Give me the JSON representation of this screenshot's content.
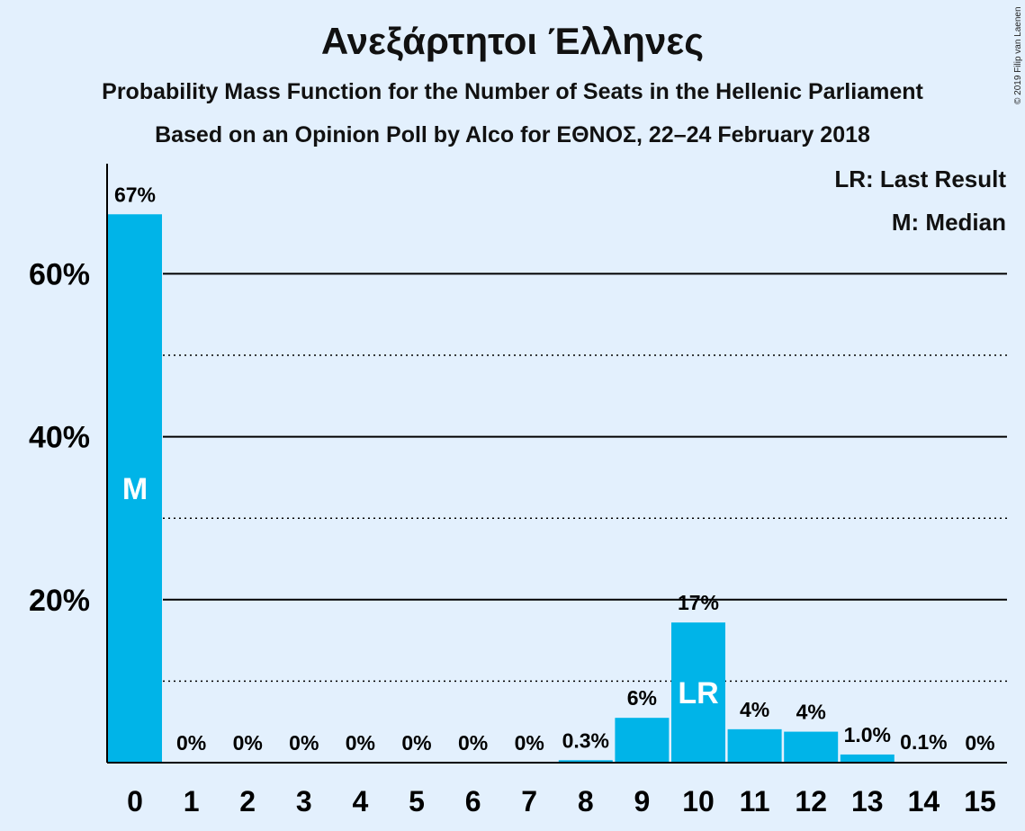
{
  "chart_data": {
    "type": "bar",
    "title": "Ανεξάρτητοι Έλληνες",
    "subtitle1": "Probability Mass Function for the Number of Seats in the Hellenic Parliament",
    "subtitle2": "Based on an Opinion Poll by Alco for ΕΘΝΟΣ, 22–24 February 2018",
    "copyright": "© 2019 Filip van Laenen",
    "legend": [
      "LR: Last Result",
      "M: Median"
    ],
    "categories": [
      "0",
      "1",
      "2",
      "3",
      "4",
      "5",
      "6",
      "7",
      "8",
      "9",
      "10",
      "11",
      "12",
      "13",
      "14",
      "15"
    ],
    "values": [
      67.3,
      0,
      0,
      0,
      0,
      0,
      0,
      0,
      0.3,
      5.5,
      17.2,
      4.1,
      3.8,
      1.0,
      0.1,
      0
    ],
    "data_labels": [
      "67%",
      "0%",
      "0%",
      "0%",
      "0%",
      "0%",
      "0%",
      "0%",
      "0.3%",
      "6%",
      "17%",
      "4%",
      "4%",
      "1.0%",
      "0.1%",
      "0%"
    ],
    "bar_annotations": {
      "0": "M",
      "10": "LR"
    },
    "ylim": [
      0,
      73
    ],
    "yticks": [
      20,
      40,
      60
    ],
    "ytick_labels": [
      "20%",
      "40%",
      "60%"
    ],
    "minor_gridlines": [
      10,
      30,
      50
    ],
    "grid": true,
    "legend_position": "top-right",
    "bar_color": "#00b4e8",
    "background": "#e3f0fd"
  }
}
